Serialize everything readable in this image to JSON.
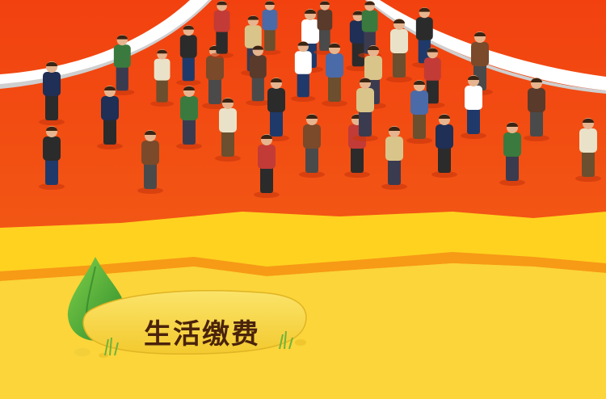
{
  "banner": {
    "title": "生活缴费",
    "colors": {
      "red_background": "#f24a12",
      "yellow_band": "#ffd21f",
      "yellow_bottom": "#fbd53a",
      "orange_stripe": "#f79a16",
      "leaf_green": "#3fa534",
      "stone_yellow": "#f7d84a",
      "title_brown": "#4a230c"
    }
  }
}
